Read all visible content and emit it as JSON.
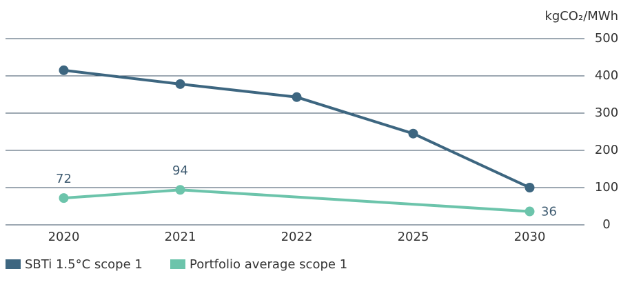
{
  "chart_data": {
    "type": "line",
    "y_axis_label": "kgCO₂/MWh",
    "categories": [
      "2020",
      "2021",
      "2022",
      "2025",
      "2030"
    ],
    "series": [
      {
        "name": "SBTi 1.5°C scope 1",
        "color": "#3d6680",
        "values": [
          415,
          378,
          343,
          245,
          100
        ]
      },
      {
        "name": "Portfolio average scope 1",
        "color": "#6cc4ab",
        "values": [
          72,
          94,
          null,
          null,
          36
        ],
        "data_labels": true
      }
    ],
    "ylim": [
      0,
      500
    ],
    "yticks": [
      0,
      100,
      200,
      300,
      400,
      500
    ],
    "grid": true,
    "legend": "bottom-left"
  }
}
